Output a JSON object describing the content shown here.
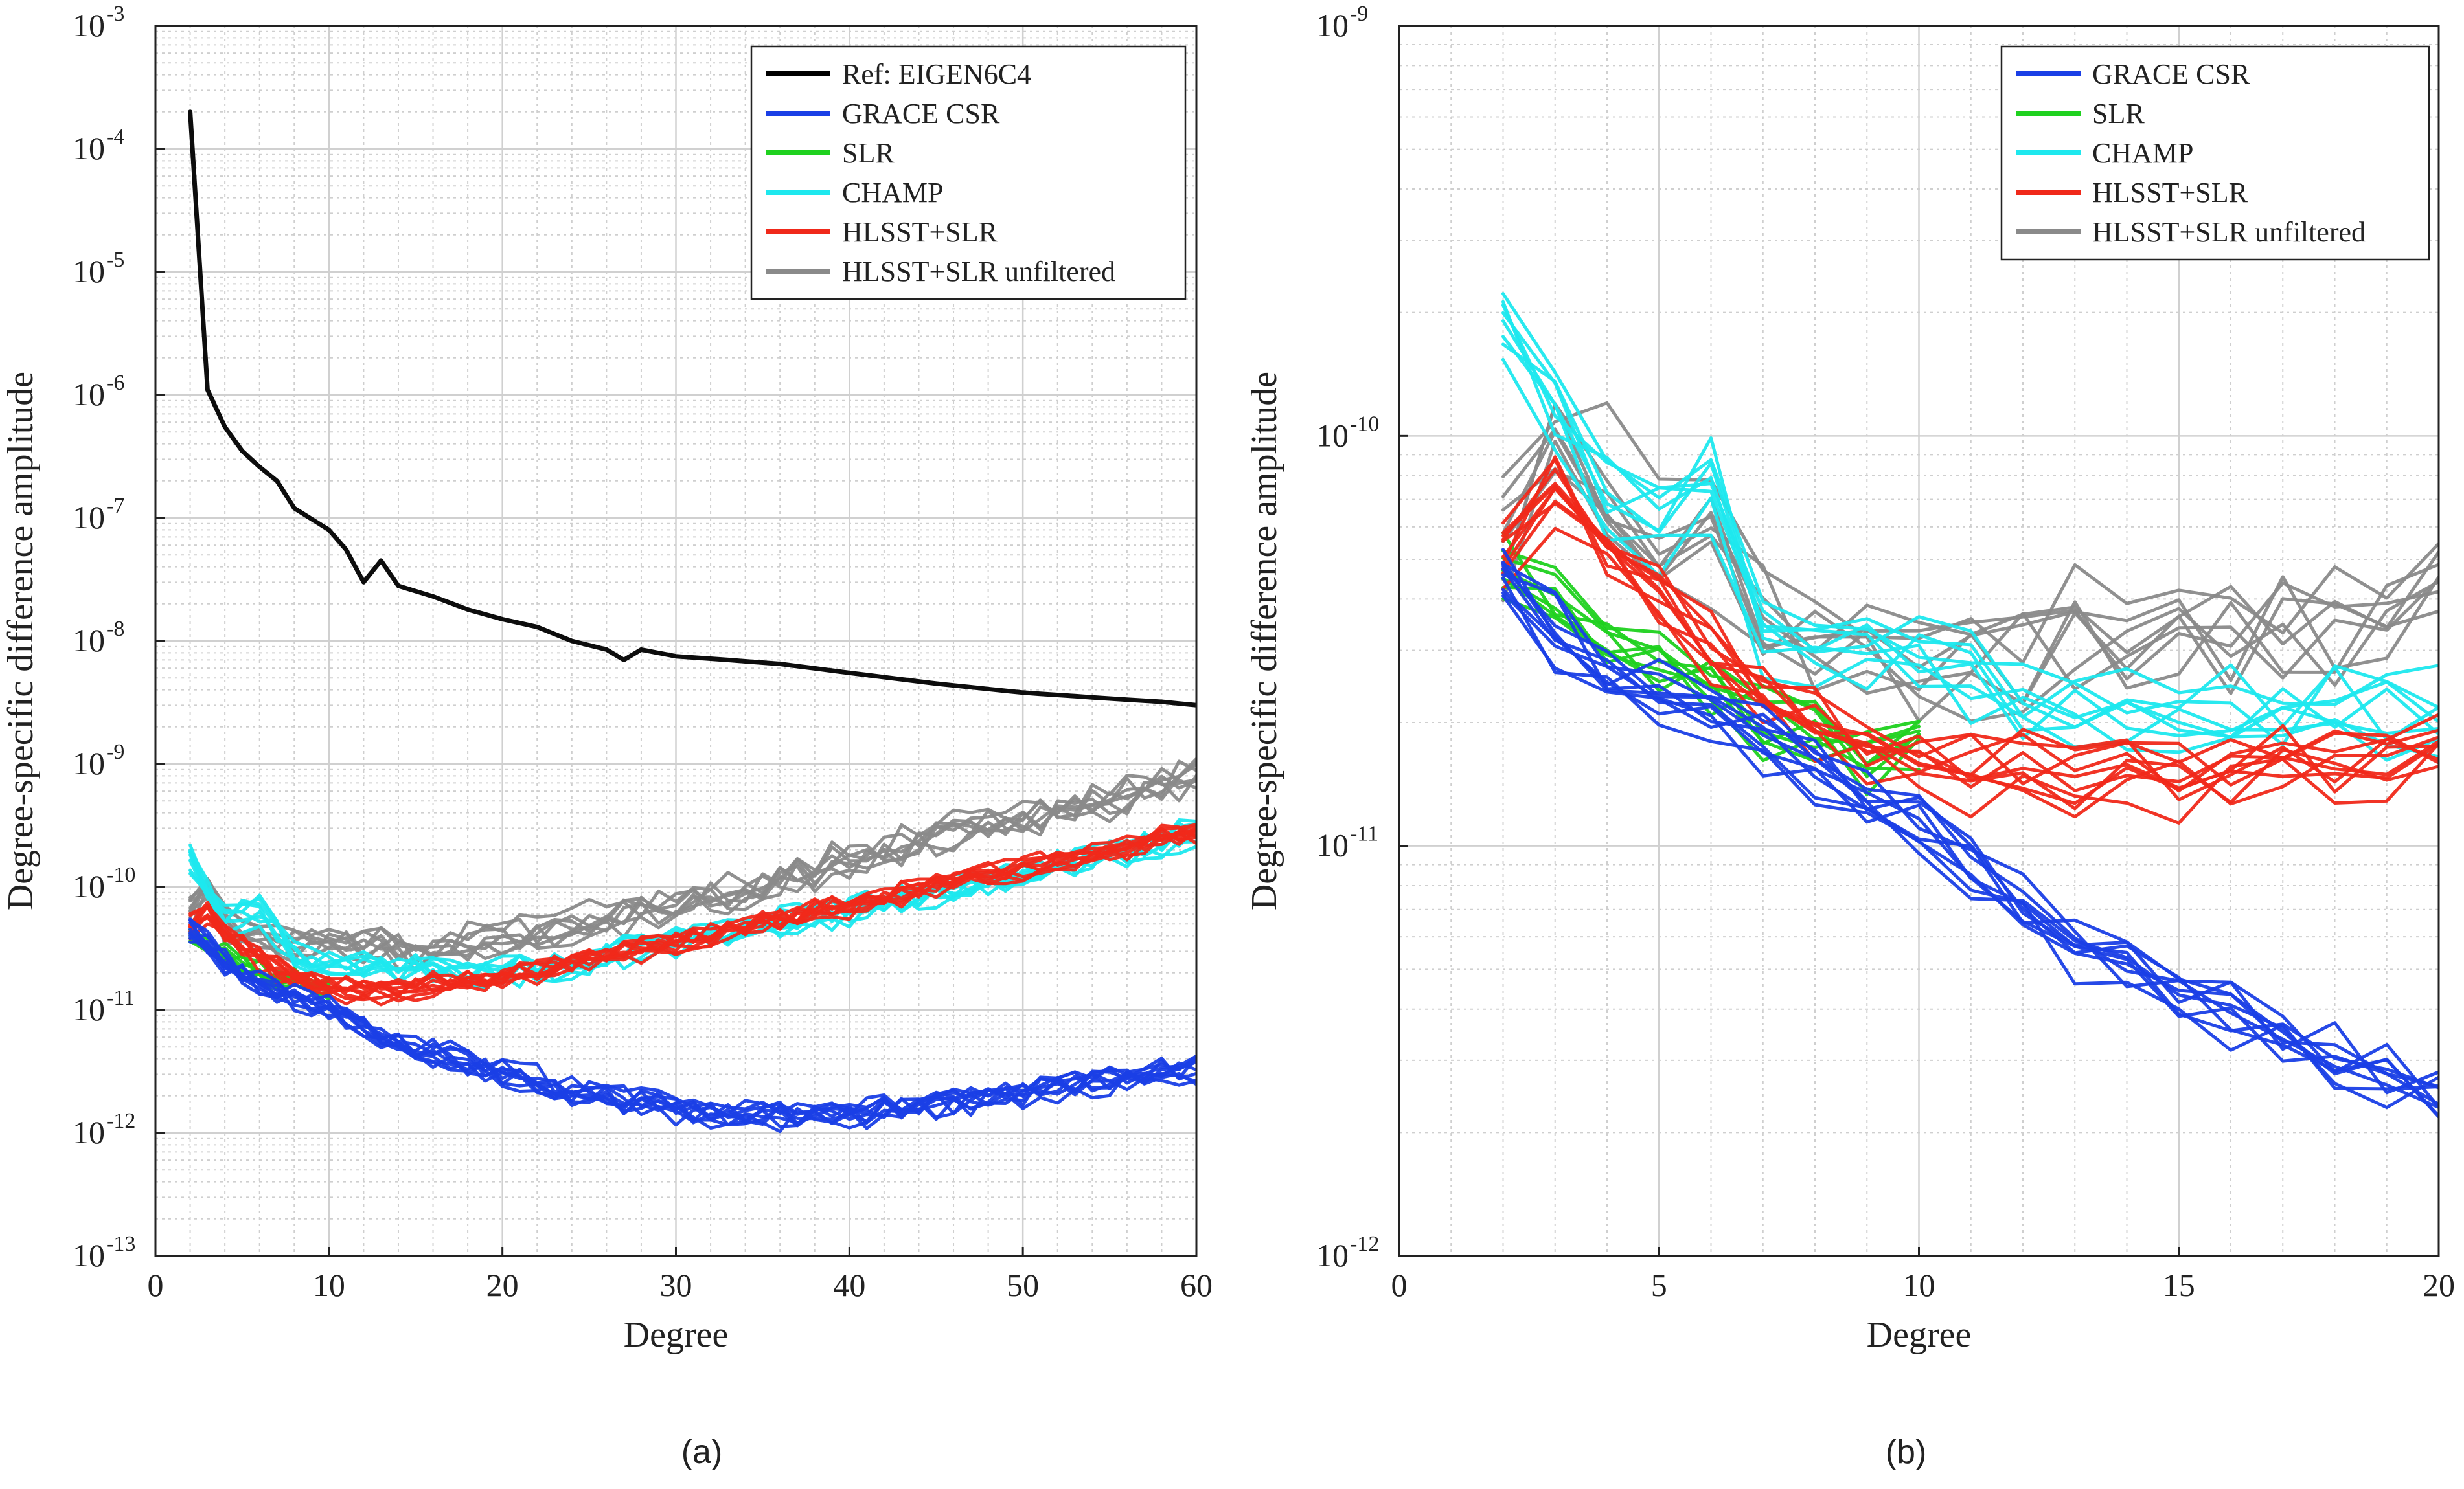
{
  "chart_data": [
    {
      "type": "line",
      "panel_label": "(a)",
      "xlabel": "Degree",
      "ylabel": "Degree-specific difference amplitude",
      "xlim": [
        0,
        60
      ],
      "ylim": [
        1e-13,
        0.001
      ],
      "yscale": "log",
      "grid": "major and minor",
      "legend_position": "top-right",
      "xticks": [
        0,
        10,
        20,
        30,
        40,
        50,
        60
      ],
      "yticks": [
        {
          "base": "10",
          "exp": "-13"
        },
        {
          "base": "10",
          "exp": "-12"
        },
        {
          "base": "10",
          "exp": "-11"
        },
        {
          "base": "10",
          "exp": "-10"
        },
        {
          "base": "10",
          "exp": "-9"
        },
        {
          "base": "10",
          "exp": "-8"
        },
        {
          "base": "10",
          "exp": "-7"
        },
        {
          "base": "10",
          "exp": "-6"
        },
        {
          "base": "10",
          "exp": "-5"
        },
        {
          "base": "10",
          "exp": "-4"
        },
        {
          "base": "10",
          "exp": "-3"
        }
      ],
      "legend": [
        {
          "name": "Ref: EIGEN6C4",
          "color": "#000000"
        },
        {
          "name": "GRACE CSR",
          "color": "#1a3fe6"
        },
        {
          "name": "SLR",
          "color": "#1fd11f"
        },
        {
          "name": "CHAMP",
          "color": "#1ee8ee"
        },
        {
          "name": "HLSST+SLR",
          "color": "#f0291a"
        },
        {
          "name": "HLSST+SLR unfiltered",
          "color": "#8a8a8a"
        }
      ],
      "series": [
        {
          "name": "Ref: EIGEN6C4",
          "color": "#000000",
          "count": 1,
          "spread": 0,
          "x": [
            2,
            3,
            4,
            5,
            6,
            7,
            8,
            10,
            11,
            12,
            13,
            14,
            16,
            18,
            20,
            22,
            24,
            26,
            27,
            28,
            30,
            33,
            36,
            40,
            45,
            50,
            55,
            58,
            60
          ],
          "y": [
            0.0002,
            1.1e-06,
            5.5e-07,
            3.5e-07,
            2.6e-07,
            2e-07,
            1.2e-07,
            8e-08,
            5.5e-08,
            3e-08,
            4.5e-08,
            2.8e-08,
            2.3e-08,
            1.8e-08,
            1.5e-08,
            1.3e-08,
            1e-08,
            8.5e-09,
            7e-09,
            8.5e-09,
            7.5e-09,
            7e-09,
            6.5e-09,
            5.5e-09,
            4.5e-09,
            3.8e-09,
            3.4e-09,
            3.2e-09,
            3e-09
          ]
        },
        {
          "name": "HLSST+SLR unfiltered",
          "color": "#8a8a8a",
          "count": 8,
          "spread": 0.13,
          "x": [
            2,
            3,
            4,
            6,
            8,
            10,
            15,
            20,
            25,
            30,
            35,
            40,
            45,
            50,
            55,
            60
          ],
          "y": [
            6e-11,
            1e-10,
            5e-11,
            4e-11,
            3.3e-11,
            3.5e-11,
            3e-11,
            3.5e-11,
            5e-11,
            7e-11,
            1e-10,
            1.6e-10,
            2.5e-10,
            3.5e-10,
            5e-10,
            8e-10
          ]
        },
        {
          "name": "CHAMP",
          "color": "#1ee8ee",
          "count": 8,
          "spread": 0.11,
          "x": [
            2,
            3,
            4,
            6,
            8,
            10,
            14,
            18,
            22,
            26,
            30,
            35,
            40,
            45,
            50,
            55,
            60
          ],
          "y": [
            1.5e-10,
            8e-11,
            5e-11,
            6e-11,
            2.5e-11,
            2.2e-11,
            2e-11,
            1.8e-11,
            2e-11,
            2.6e-11,
            3.3e-11,
            4.5e-11,
            6e-11,
            8.5e-11,
            1.15e-10,
            1.7e-10,
            2.6e-10
          ]
        },
        {
          "name": "SLR",
          "color": "#1fd11f",
          "count": 8,
          "spread": 0.08,
          "x": [
            2,
            3,
            4,
            5,
            6,
            7,
            8,
            9,
            10
          ],
          "y": [
            4e-11,
            3.2e-11,
            2.8e-11,
            2.3e-11,
            2e-11,
            1.6e-11,
            1.8e-11,
            1.5e-11,
            1.6e-11
          ]
        },
        {
          "name": "HLSST+SLR",
          "color": "#f0291a",
          "count": 10,
          "spread": 0.08,
          "x": [
            2,
            3,
            4,
            5,
            6,
            8,
            10,
            13,
            16,
            20,
            25,
            30,
            35,
            40,
            45,
            50,
            55,
            60
          ],
          "y": [
            4.8e-11,
            6e-11,
            4.2e-11,
            3.2e-11,
            2.6e-11,
            1.7e-11,
            1.5e-11,
            1.4e-11,
            1.6e-11,
            1.8e-11,
            2.5e-11,
            3.5e-11,
            5e-11,
            7e-11,
            1e-10,
            1.4e-10,
            2e-10,
            2.8e-10
          ]
        },
        {
          "name": "GRACE CSR",
          "color": "#1a3fe6",
          "count": 10,
          "spread": 0.1,
          "x": [
            2,
            3,
            4,
            6,
            8,
            10,
            13,
            16,
            20,
            24,
            28,
            32,
            36,
            40,
            44,
            48,
            52,
            56,
            60
          ],
          "y": [
            4.5e-11,
            3.3e-11,
            2.3e-11,
            1.6e-11,
            1.3e-11,
            1e-11,
            6e-12,
            4.5e-12,
            3e-12,
            2.2e-12,
            1.7e-12,
            1.4e-12,
            1.35e-12,
            1.4e-12,
            1.6e-12,
            1.9e-12,
            2.3e-12,
            2.8e-12,
            3.3e-12
          ]
        }
      ]
    },
    {
      "type": "line",
      "panel_label": "(b)",
      "xlabel": "Degree",
      "ylabel": "Degree-specific difference amplitude",
      "xlim": [
        0,
        20
      ],
      "ylim": [
        1e-12,
        1e-09
      ],
      "yscale": "log",
      "grid": "major and minor",
      "legend_position": "top-right",
      "xticks": [
        0,
        5,
        10,
        15,
        20
      ],
      "yticks": [
        {
          "base": "10",
          "exp": "-12"
        },
        {
          "base": "10",
          "exp": "-11"
        },
        {
          "base": "10",
          "exp": "-10"
        },
        {
          "base": "10",
          "exp": "-9"
        }
      ],
      "legend": [
        {
          "name": "GRACE CSR",
          "color": "#1a3fe6"
        },
        {
          "name": "SLR",
          "color": "#1fd11f"
        },
        {
          "name": "CHAMP",
          "color": "#1ee8ee"
        },
        {
          "name": "HLSST+SLR",
          "color": "#f0291a"
        },
        {
          "name": "HLSST+SLR unfiltered",
          "color": "#8a8a8a"
        }
      ],
      "series": [
        {
          "name": "HLSST+SLR unfiltered",
          "color": "#8a8a8a",
          "count": 8,
          "spread": 0.12,
          "x": [
            2,
            3,
            4,
            5,
            6,
            7,
            8,
            9,
            10,
            11,
            12,
            13,
            14,
            15,
            16,
            17,
            18,
            19,
            20
          ],
          "y": [
            6e-11,
            1e-10,
            8e-11,
            6e-11,
            5.5e-11,
            4e-11,
            3.4e-11,
            3.2e-11,
            3e-11,
            2.9e-11,
            3.1e-11,
            3.3e-11,
            3.2e-11,
            3.5e-11,
            3.4e-11,
            3.6e-11,
            3.5e-11,
            3.6e-11,
            4e-11
          ]
        },
        {
          "name": "CHAMP",
          "color": "#1ee8ee",
          "count": 8,
          "spread": 0.09,
          "x": [
            2,
            3,
            4,
            5,
            6,
            7,
            8,
            9,
            10,
            11,
            12,
            13,
            14,
            15,
            16,
            17,
            18,
            19,
            20
          ],
          "y": [
            1.8e-10,
            1.1e-10,
            7e-11,
            6e-11,
            7.5e-11,
            3e-11,
            3.2e-11,
            2.8e-11,
            2.9e-11,
            2.6e-11,
            2.2e-11,
            2e-11,
            2.1e-11,
            2e-11,
            2.1e-11,
            2e-11,
            2.2e-11,
            2e-11,
            2.1e-11
          ]
        },
        {
          "name": "SLR",
          "color": "#1fd11f",
          "count": 8,
          "spread": 0.08,
          "x": [
            2,
            3,
            4,
            5,
            6,
            7,
            8,
            9,
            10
          ],
          "y": [
            4.5e-11,
            3.8e-11,
            3e-11,
            2.8e-11,
            2.4e-11,
            2e-11,
            1.8e-11,
            1.6e-11,
            1.7e-11
          ]
        },
        {
          "name": "HLSST+SLR",
          "color": "#f0291a",
          "count": 10,
          "spread": 0.07,
          "x": [
            2,
            3,
            4,
            5,
            6,
            7,
            8,
            9,
            10,
            11,
            12,
            13,
            14,
            15,
            16,
            17,
            18,
            19,
            20
          ],
          "y": [
            5e-11,
            7e-11,
            5e-11,
            4e-11,
            3e-11,
            2.2e-11,
            2e-11,
            1.7e-11,
            1.6e-11,
            1.5e-11,
            1.5e-11,
            1.4e-11,
            1.5e-11,
            1.4e-11,
            1.5e-11,
            1.6e-11,
            1.5e-11,
            1.6e-11,
            1.7e-11
          ]
        },
        {
          "name": "GRACE CSR",
          "color": "#1a3fe6",
          "count": 10,
          "spread": 0.07,
          "x": [
            2,
            3,
            4,
            5,
            6,
            7,
            8,
            9,
            10,
            11,
            12,
            13,
            14,
            15,
            16,
            17,
            18,
            19,
            20
          ],
          "y": [
            4.5e-11,
            3.3e-11,
            2.6e-11,
            2.3e-11,
            2e-11,
            1.8e-11,
            1.6e-11,
            1.3e-11,
            1.1e-11,
            8.5e-12,
            7e-12,
            5.8e-12,
            5e-12,
            4.5e-12,
            3.9e-12,
            3.4e-12,
            3e-12,
            2.7e-12,
            2.4e-12
          ]
        }
      ]
    }
  ]
}
